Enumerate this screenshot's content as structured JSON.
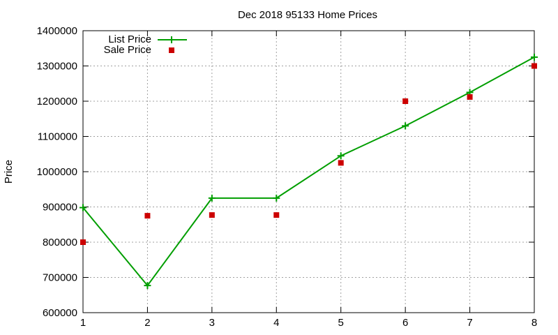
{
  "chart_data": {
    "type": "line",
    "title": "Dec 2018 95133 Home Prices",
    "xlabel": "",
    "ylabel": "Price",
    "x": [
      1,
      2,
      3,
      4,
      5,
      6,
      7,
      8
    ],
    "xlim": [
      1,
      8
    ],
    "ylim": [
      600000,
      1400000
    ],
    "x_ticks": [
      "1",
      "2",
      "3",
      "4",
      "5",
      "6",
      "7",
      "8"
    ],
    "y_ticks": [
      "600000",
      "700000",
      "800000",
      "900000",
      "1000000",
      "1100000",
      "1200000",
      "1300000",
      "1400000"
    ],
    "grid": true,
    "legend_position": "top-left",
    "series": [
      {
        "name": "List Price",
        "style": "line-with-plus-markers",
        "color": "#009e00",
        "values": [
          898000,
          677000,
          925000,
          925000,
          1045000,
          1130000,
          1225000,
          1325000
        ]
      },
      {
        "name": "Sale Price",
        "style": "square-markers",
        "color": "#cc0000",
        "values": [
          800000,
          875000,
          877000,
          877000,
          1025000,
          1200000,
          1212000,
          1300000
        ]
      }
    ]
  }
}
